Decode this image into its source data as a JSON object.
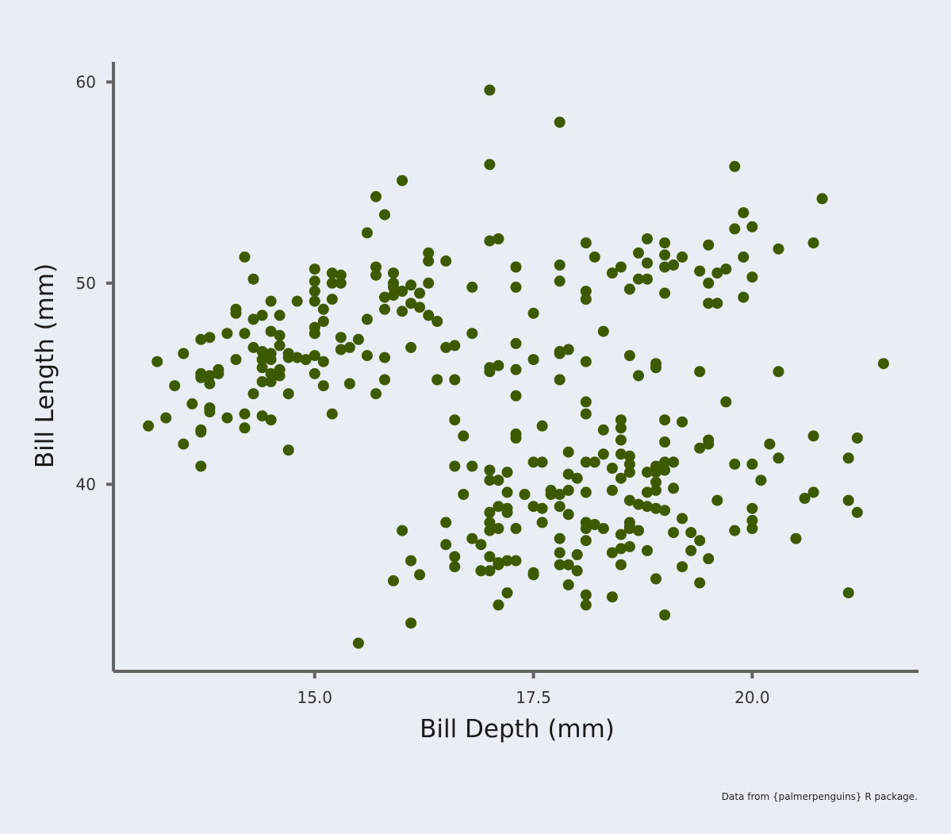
{
  "chart_data": {
    "type": "scatter",
    "title": "",
    "xlabel": "Bill Depth (mm)",
    "ylabel": "Bill Length (mm)",
    "xlim": [
      12.7,
      21.9
    ],
    "ylim": [
      30.7,
      61.0
    ],
    "x_ticks": [
      15.0,
      17.5,
      20.0
    ],
    "x_tick_labels": [
      "15.0",
      "17.5",
      "20.0"
    ],
    "y_ticks": [
      40,
      50,
      60
    ],
    "y_tick_labels": [
      "40",
      "50",
      "60"
    ],
    "grid": false,
    "legend": "none",
    "point_color": "#3d5a00",
    "caption": "Data from {palmerpenguins} R package.",
    "points": [
      [
        17.0,
        59.6
      ],
      [
        17.8,
        58.0
      ],
      [
        17.0,
        55.9
      ],
      [
        16.0,
        55.1
      ],
      [
        19.8,
        55.8
      ],
      [
        15.7,
        54.3
      ],
      [
        20.8,
        54.2
      ],
      [
        15.8,
        53.4
      ],
      [
        19.9,
        53.5
      ],
      [
        15.6,
        52.5
      ],
      [
        19.8,
        52.7
      ],
      [
        20.0,
        52.8
      ],
      [
        17.0,
        52.1
      ],
      [
        17.1,
        52.2
      ],
      [
        18.1,
        52.0
      ],
      [
        18.8,
        52.2
      ],
      [
        19.0,
        52.0
      ],
      [
        19.5,
        51.9
      ],
      [
        20.3,
        51.7
      ],
      [
        20.7,
        52.0
      ],
      [
        14.2,
        51.3
      ],
      [
        16.3,
        51.5
      ],
      [
        16.3,
        51.1
      ],
      [
        16.5,
        51.1
      ],
      [
        18.2,
        51.3
      ],
      [
        18.7,
        51.5
      ],
      [
        19.0,
        51.4
      ],
      [
        19.2,
        51.3
      ],
      [
        19.9,
        51.3
      ],
      [
        17.8,
        50.9
      ],
      [
        18.8,
        51.0
      ],
      [
        19.1,
        50.9
      ],
      [
        19.0,
        50.8
      ],
      [
        15.0,
        50.7
      ],
      [
        15.2,
        50.5
      ],
      [
        15.3,
        50.4
      ],
      [
        15.7,
        50.8
      ],
      [
        15.7,
        50.4
      ],
      [
        15.9,
        50.5
      ],
      [
        17.3,
        50.8
      ],
      [
        18.4,
        50.5
      ],
      [
        18.5,
        50.8
      ],
      [
        19.4,
        50.6
      ],
      [
        19.6,
        50.5
      ],
      [
        19.7,
        50.7
      ],
      [
        14.3,
        50.2
      ],
      [
        15.0,
        50.1
      ],
      [
        15.2,
        50.0
      ],
      [
        15.3,
        50.0
      ],
      [
        15.9,
        50.0
      ],
      [
        15.9,
        49.8
      ],
      [
        16.0,
        49.6
      ],
      [
        16.1,
        49.9
      ],
      [
        16.2,
        49.5
      ],
      [
        16.3,
        50.0
      ],
      [
        17.3,
        49.8
      ],
      [
        17.8,
        50.1
      ],
      [
        18.1,
        49.6
      ],
      [
        18.1,
        49.2
      ],
      [
        18.6,
        49.7
      ],
      [
        18.7,
        50.2
      ],
      [
        18.8,
        50.2
      ],
      [
        19.0,
        49.5
      ],
      [
        19.5,
        50.0
      ],
      [
        19.5,
        49.0
      ],
      [
        19.6,
        49.0
      ],
      [
        19.9,
        49.3
      ],
      [
        20.0,
        50.3
      ],
      [
        16.8,
        49.8
      ],
      [
        15.0,
        49.6
      ],
      [
        15.2,
        49.2
      ],
      [
        14.5,
        49.1
      ],
      [
        14.8,
        49.1
      ],
      [
        15.0,
        49.1
      ],
      [
        15.8,
        49.3
      ],
      [
        15.8,
        48.7
      ],
      [
        15.9,
        49.4
      ],
      [
        16.1,
        49.0
      ],
      [
        16.2,
        48.8
      ],
      [
        16.0,
        48.6
      ],
      [
        16.3,
        48.4
      ],
      [
        16.4,
        48.1
      ],
      [
        17.5,
        48.5
      ],
      [
        14.1,
        48.7
      ],
      [
        14.1,
        48.5
      ],
      [
        14.4,
        48.4
      ],
      [
        15.1,
        48.7
      ],
      [
        15.1,
        48.1
      ],
      [
        15.0,
        47.8
      ],
      [
        15.0,
        47.5
      ],
      [
        14.3,
        48.2
      ],
      [
        14.6,
        48.4
      ],
      [
        14.2,
        47.5
      ],
      [
        14.5,
        47.6
      ],
      [
        14.6,
        47.4
      ],
      [
        13.7,
        47.2
      ],
      [
        13.8,
        47.3
      ],
      [
        14.0,
        47.5
      ],
      [
        15.3,
        47.3
      ],
      [
        15.5,
        47.2
      ],
      [
        15.6,
        48.2
      ],
      [
        16.8,
        47.5
      ],
      [
        18.3,
        47.6
      ],
      [
        14.3,
        46.8
      ],
      [
        14.4,
        46.6
      ],
      [
        14.5,
        46.5
      ],
      [
        14.6,
        46.9
      ],
      [
        13.5,
        46.5
      ],
      [
        14.1,
        46.2
      ],
      [
        14.4,
        46.2
      ],
      [
        14.5,
        46.2
      ],
      [
        14.7,
        46.5
      ],
      [
        15.0,
        46.4
      ],
      [
        15.1,
        46.1
      ],
      [
        15.3,
        46.7
      ],
      [
        15.4,
        46.8
      ],
      [
        15.6,
        46.4
      ],
      [
        15.8,
        46.3
      ],
      [
        16.1,
        46.8
      ],
      [
        16.5,
        46.8
      ],
      [
        16.6,
        46.9
      ],
      [
        17.3,
        47.0
      ],
      [
        17.5,
        46.2
      ],
      [
        17.8,
        46.6
      ],
      [
        17.9,
        46.7
      ],
      [
        17.8,
        46.5
      ],
      [
        18.6,
        46.4
      ],
      [
        18.1,
        46.1
      ],
      [
        18.9,
        46.0
      ],
      [
        18.9,
        45.8
      ],
      [
        19.4,
        45.6
      ],
      [
        20.3,
        45.6
      ],
      [
        21.5,
        46.0
      ],
      [
        13.2,
        46.1
      ],
      [
        13.4,
        44.9
      ],
      [
        13.7,
        45.5
      ],
      [
        13.7,
        45.3
      ],
      [
        13.8,
        45.4
      ],
      [
        13.9,
        45.5
      ],
      [
        13.9,
        45.7
      ],
      [
        13.8,
        45.0
      ],
      [
        14.4,
        45.8
      ],
      [
        14.5,
        45.5
      ],
      [
        14.5,
        45.1
      ],
      [
        14.6,
        45.7
      ],
      [
        14.6,
        45.4
      ],
      [
        14.4,
        45.1
      ],
      [
        14.7,
        46.3
      ],
      [
        14.8,
        46.3
      ],
      [
        14.9,
        46.2
      ],
      [
        15.0,
        45.5
      ],
      [
        15.1,
        44.9
      ],
      [
        14.3,
        44.5
      ],
      [
        14.7,
        44.5
      ],
      [
        15.4,
        45.0
      ],
      [
        15.7,
        44.5
      ],
      [
        15.8,
        45.2
      ],
      [
        16.4,
        45.2
      ],
      [
        16.6,
        45.2
      ],
      [
        17.0,
        45.6
      ],
      [
        17.0,
        45.8
      ],
      [
        17.1,
        45.9
      ],
      [
        17.3,
        45.7
      ],
      [
        17.3,
        44.4
      ],
      [
        17.8,
        45.2
      ],
      [
        18.7,
        45.4
      ],
      [
        13.6,
        44.0
      ],
      [
        13.8,
        43.8
      ],
      [
        13.8,
        43.6
      ],
      [
        13.3,
        43.3
      ],
      [
        14.0,
        43.3
      ],
      [
        14.2,
        43.5
      ],
      [
        14.4,
        43.4
      ],
      [
        14.5,
        43.2
      ],
      [
        15.2,
        43.5
      ],
      [
        18.1,
        44.1
      ],
      [
        18.1,
        43.5
      ],
      [
        18.3,
        42.7
      ],
      [
        18.5,
        43.2
      ],
      [
        18.5,
        42.8
      ],
      [
        19.0,
        43.2
      ],
      [
        19.2,
        43.1
      ],
      [
        19.7,
        44.1
      ],
      [
        13.1,
        42.9
      ],
      [
        13.5,
        42.0
      ],
      [
        13.7,
        42.7
      ],
      [
        13.7,
        42.6
      ],
      [
        14.2,
        42.8
      ],
      [
        14.7,
        41.7
      ],
      [
        13.7,
        40.9
      ],
      [
        16.6,
        43.2
      ],
      [
        16.7,
        42.4
      ],
      [
        17.3,
        42.5
      ],
      [
        17.3,
        42.3
      ],
      [
        17.6,
        42.9
      ],
      [
        18.5,
        42.2
      ],
      [
        19.0,
        42.1
      ],
      [
        19.5,
        42.2
      ],
      [
        19.5,
        42.0
      ],
      [
        19.4,
        41.8
      ],
      [
        20.2,
        42.0
      ],
      [
        20.7,
        42.4
      ],
      [
        21.2,
        42.3
      ],
      [
        20.3,
        41.3
      ],
      [
        21.1,
        41.3
      ],
      [
        17.9,
        41.6
      ],
      [
        18.1,
        41.1
      ],
      [
        18.2,
        41.1
      ],
      [
        18.3,
        41.5
      ],
      [
        18.5,
        41.5
      ],
      [
        18.6,
        41.4
      ],
      [
        18.6,
        41.0
      ],
      [
        18.6,
        40.6
      ],
      [
        18.4,
        40.8
      ],
      [
        18.8,
        40.6
      ],
      [
        18.9,
        40.9
      ],
      [
        19.0,
        40.7
      ],
      [
        19.0,
        41.1
      ],
      [
        19.1,
        41.1
      ],
      [
        18.9,
        40.6
      ],
      [
        18.9,
        40.1
      ],
      [
        19.8,
        41.0
      ],
      [
        20.0,
        41.0
      ],
      [
        16.6,
        40.9
      ],
      [
        16.8,
        40.9
      ],
      [
        17.0,
        40.7
      ],
      [
        17.0,
        40.2
      ],
      [
        17.1,
        40.2
      ],
      [
        17.2,
        40.6
      ],
      [
        17.5,
        41.1
      ],
      [
        17.6,
        41.1
      ],
      [
        17.9,
        40.5
      ],
      [
        18.0,
        40.3
      ],
      [
        18.5,
        40.3
      ],
      [
        20.1,
        40.2
      ],
      [
        16.7,
        39.5
      ],
      [
        17.2,
        39.6
      ],
      [
        17.4,
        39.5
      ],
      [
        17.7,
        39.7
      ],
      [
        17.7,
        39.5
      ],
      [
        17.8,
        39.5
      ],
      [
        18.1,
        39.6
      ],
      [
        17.9,
        39.7
      ],
      [
        18.4,
        39.7
      ],
      [
        18.6,
        39.2
      ],
      [
        18.7,
        39.0
      ],
      [
        18.8,
        38.9
      ],
      [
        18.8,
        39.6
      ],
      [
        18.9,
        39.7
      ],
      [
        19.1,
        39.8
      ],
      [
        19.6,
        39.2
      ],
      [
        20.6,
        39.3
      ],
      [
        20.7,
        39.6
      ],
      [
        21.1,
        39.2
      ],
      [
        17.0,
        38.6
      ],
      [
        17.1,
        38.9
      ],
      [
        17.2,
        38.8
      ],
      [
        17.2,
        38.6
      ],
      [
        17.5,
        38.9
      ],
      [
        17.6,
        38.8
      ],
      [
        17.6,
        38.1
      ],
      [
        17.8,
        38.9
      ],
      [
        17.9,
        38.5
      ],
      [
        18.1,
        38.1
      ],
      [
        18.1,
        37.8
      ],
      [
        18.2,
        38.0
      ],
      [
        18.6,
        38.1
      ],
      [
        18.6,
        37.9
      ],
      [
        18.7,
        37.7
      ],
      [
        18.9,
        38.8
      ],
      [
        19.0,
        38.7
      ],
      [
        19.2,
        38.3
      ],
      [
        20.0,
        38.8
      ],
      [
        20.0,
        38.2
      ],
      [
        21.2,
        38.6
      ],
      [
        16.0,
        37.7
      ],
      [
        16.5,
        38.1
      ],
      [
        17.0,
        38.1
      ],
      [
        17.0,
        37.7
      ],
      [
        17.1,
        37.8
      ],
      [
        17.3,
        37.8
      ],
      [
        18.3,
        37.8
      ],
      [
        18.5,
        37.5
      ],
      [
        18.6,
        37.8
      ],
      [
        19.1,
        37.6
      ],
      [
        19.3,
        37.6
      ],
      [
        19.8,
        37.7
      ],
      [
        20.0,
        37.8
      ],
      [
        16.5,
        37.0
      ],
      [
        16.6,
        36.4
      ],
      [
        16.8,
        37.3
      ],
      [
        16.9,
        37.0
      ],
      [
        17.0,
        36.4
      ],
      [
        17.1,
        36.0
      ],
      [
        17.2,
        36.2
      ],
      [
        17.3,
        36.2
      ],
      [
        17.8,
        37.3
      ],
      [
        17.8,
        36.6
      ],
      [
        17.8,
        36.0
      ],
      [
        17.9,
        36.0
      ],
      [
        18.0,
        36.5
      ],
      [
        18.0,
        35.7
      ],
      [
        18.1,
        37.2
      ],
      [
        18.4,
        36.6
      ],
      [
        18.5,
        36.8
      ],
      [
        18.5,
        36.0
      ],
      [
        18.6,
        36.9
      ],
      [
        18.8,
        36.7
      ],
      [
        19.2,
        35.9
      ],
      [
        19.3,
        36.7
      ],
      [
        19.4,
        37.2
      ],
      [
        19.5,
        36.3
      ],
      [
        20.5,
        37.3
      ],
      [
        16.1,
        36.2
      ],
      [
        16.2,
        35.5
      ],
      [
        16.6,
        35.9
      ],
      [
        16.9,
        35.7
      ],
      [
        17.0,
        35.7
      ],
      [
        17.1,
        36.1
      ],
      [
        17.5,
        35.6
      ],
      [
        17.5,
        35.5
      ],
      [
        17.9,
        35.0
      ],
      [
        18.1,
        34.5
      ],
      [
        18.1,
        34.0
      ],
      [
        18.4,
        34.4
      ],
      [
        18.9,
        35.3
      ],
      [
        19.4,
        35.1
      ],
      [
        15.9,
        35.2
      ],
      [
        17.1,
        34.0
      ],
      [
        17.2,
        34.6
      ],
      [
        19.0,
        33.5
      ],
      [
        21.1,
        34.6
      ],
      [
        16.1,
        33.1
      ],
      [
        15.5,
        32.1
      ]
    ]
  }
}
